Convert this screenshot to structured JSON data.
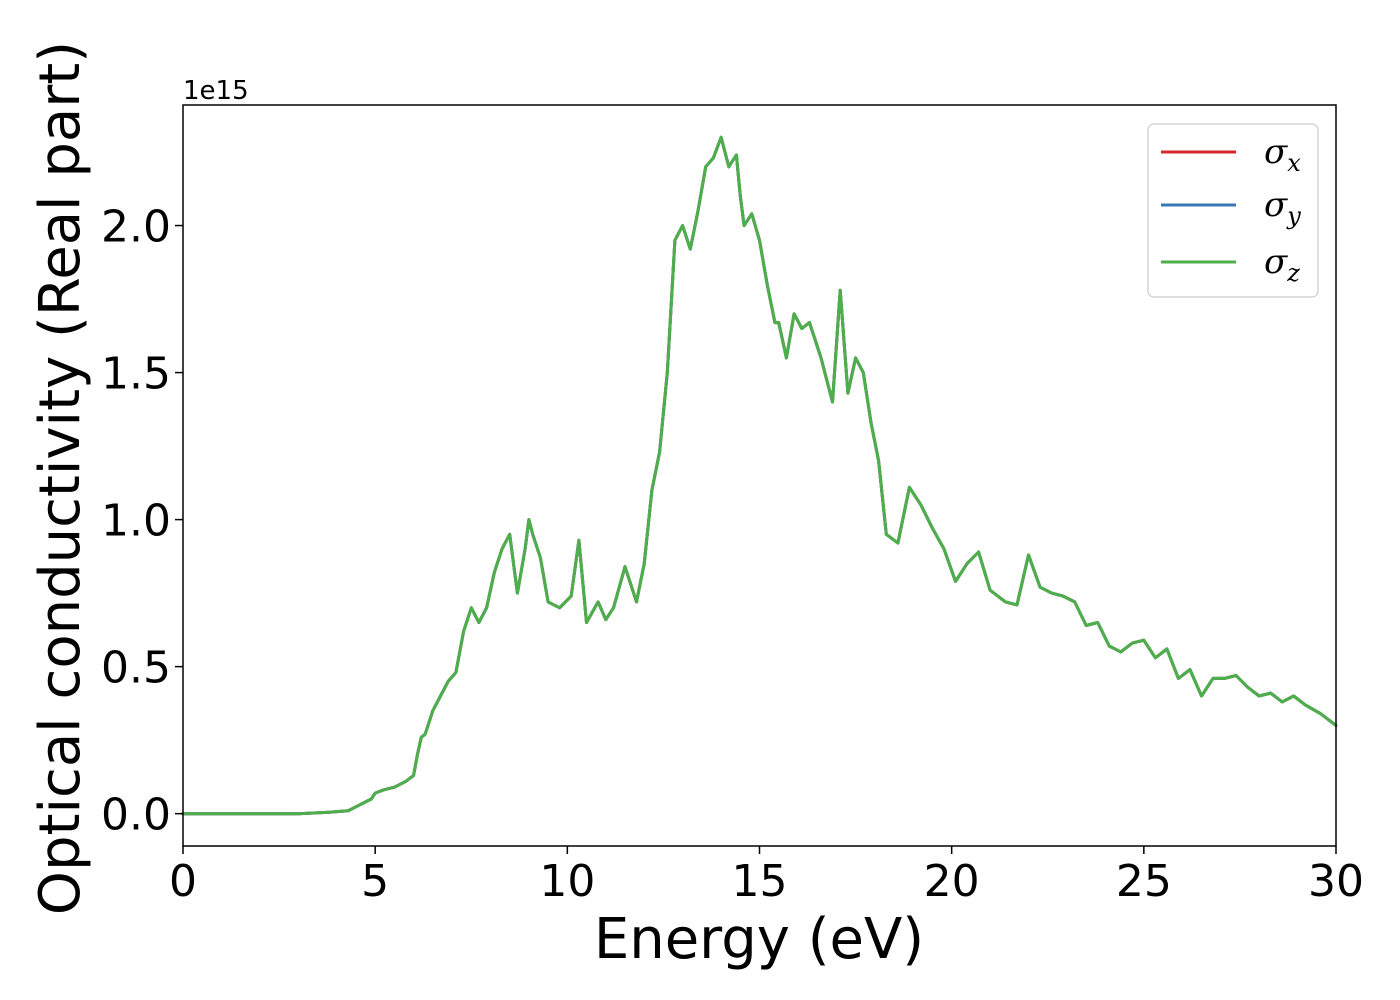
{
  "chart_data": {
    "type": "line",
    "title": "",
    "xlabel": "Energy (eV)",
    "ylabel": "Optical conductivity (Real part)",
    "y_offset_text": "1e15",
    "y_multiplier": 1000000000000000.0,
    "xlim": [
      0,
      30
    ],
    "ylim": [
      -0.11,
      2.41
    ],
    "xticks": [
      0,
      5,
      10,
      15,
      20,
      25,
      30
    ],
    "xtick_labels": [
      "0",
      "5",
      "10",
      "15",
      "20",
      "25",
      "30"
    ],
    "yticks": [
      0.0,
      0.5,
      1.0,
      1.5,
      2.0
    ],
    "ytick_labels": [
      "0.0",
      "0.5",
      "1.0",
      "1.5",
      "2.0"
    ],
    "grid": false,
    "legend_position": "top-right",
    "series": [
      {
        "name": "σx",
        "label_base": "σ",
        "label_sub": "x",
        "color": "#d62728",
        "x": [
          0,
          1,
          2,
          3,
          3.8,
          4.3,
          4.6,
          4.9,
          5.0,
          5.2,
          5.5,
          5.8,
          6.0,
          6.1,
          6.2,
          6.3,
          6.5,
          6.7,
          6.9,
          7.1,
          7.3,
          7.5,
          7.7,
          7.9,
          8.1,
          8.3,
          8.5,
          8.7,
          8.9,
          9.0,
          9.1,
          9.3,
          9.5,
          9.8,
          10.1,
          10.3,
          10.5,
          10.8,
          11.0,
          11.2,
          11.5,
          11.8,
          12.0,
          12.2,
          12.4,
          12.6,
          12.8,
          13.0,
          13.2,
          13.4,
          13.6,
          13.8,
          14.0,
          14.2,
          14.4,
          14.5,
          14.6,
          14.8,
          15.0,
          15.2,
          15.4,
          15.5,
          15.7,
          15.9,
          16.1,
          16.3,
          16.6,
          16.9,
          17.1,
          17.3,
          17.5,
          17.7,
          17.9,
          18.1,
          18.3,
          18.6,
          18.9,
          19.2,
          19.5,
          19.8,
          20.1,
          20.4,
          20.7,
          21.0,
          21.4,
          21.7,
          22.0,
          22.3,
          22.6,
          22.9,
          23.2,
          23.5,
          23.8,
          24.1,
          24.4,
          24.7,
          25.0,
          25.3,
          25.6,
          25.9,
          26.2,
          26.5,
          26.8,
          27.1,
          27.4,
          27.7,
          28.0,
          28.3,
          28.6,
          28.9,
          29.2,
          29.6,
          30.0
        ],
        "y": [
          0.0,
          0.0,
          0.0,
          0.0,
          0.005,
          0.01,
          0.03,
          0.05,
          0.07,
          0.08,
          0.09,
          0.11,
          0.13,
          0.2,
          0.26,
          0.27,
          0.35,
          0.4,
          0.45,
          0.48,
          0.62,
          0.7,
          0.65,
          0.7,
          0.82,
          0.9,
          0.95,
          0.75,
          0.9,
          1.0,
          0.95,
          0.87,
          0.72,
          0.7,
          0.74,
          0.93,
          0.65,
          0.72,
          0.66,
          0.7,
          0.84,
          0.72,
          0.85,
          1.1,
          1.23,
          1.5,
          1.95,
          2.0,
          1.92,
          2.05,
          2.2,
          2.23,
          2.3,
          2.2,
          2.24,
          2.1,
          2.0,
          2.04,
          1.95,
          1.8,
          1.67,
          1.67,
          1.55,
          1.7,
          1.65,
          1.67,
          1.55,
          1.4,
          1.78,
          1.43,
          1.55,
          1.5,
          1.33,
          1.2,
          0.95,
          0.92,
          1.11,
          1.05,
          0.97,
          0.9,
          0.79,
          0.85,
          0.89,
          0.76,
          0.72,
          0.71,
          0.88,
          0.77,
          0.75,
          0.74,
          0.72,
          0.64,
          0.65,
          0.57,
          0.55,
          0.58,
          0.59,
          0.53,
          0.56,
          0.46,
          0.49,
          0.4,
          0.46,
          0.46,
          0.47,
          0.43,
          0.4,
          0.41,
          0.38,
          0.4,
          0.37,
          0.34,
          0.3
        ]
      },
      {
        "name": "σy",
        "label_base": "σ",
        "label_sub": "y",
        "color": "#3a78b5",
        "x": [
          0,
          1,
          2,
          3,
          3.8,
          4.3,
          4.6,
          4.9,
          5.0,
          5.2,
          5.5,
          5.8,
          6.0,
          6.1,
          6.2,
          6.3,
          6.5,
          6.7,
          6.9,
          7.1,
          7.3,
          7.5,
          7.7,
          7.9,
          8.1,
          8.3,
          8.5,
          8.7,
          8.9,
          9.0,
          9.1,
          9.3,
          9.5,
          9.8,
          10.1,
          10.3,
          10.5,
          10.8,
          11.0,
          11.2,
          11.5,
          11.8,
          12.0,
          12.2,
          12.4,
          12.6,
          12.8,
          13.0,
          13.2,
          13.4,
          13.6,
          13.8,
          14.0,
          14.2,
          14.4,
          14.5,
          14.6,
          14.8,
          15.0,
          15.2,
          15.4,
          15.5,
          15.7,
          15.9,
          16.1,
          16.3,
          16.6,
          16.9,
          17.1,
          17.3,
          17.5,
          17.7,
          17.9,
          18.1,
          18.3,
          18.6,
          18.9,
          19.2,
          19.5,
          19.8,
          20.1,
          20.4,
          20.7,
          21.0,
          21.4,
          21.7,
          22.0,
          22.3,
          22.6,
          22.9,
          23.2,
          23.5,
          23.8,
          24.1,
          24.4,
          24.7,
          25.0,
          25.3,
          25.6,
          25.9,
          26.2,
          26.5,
          26.8,
          27.1,
          27.4,
          27.7,
          28.0,
          28.3,
          28.6,
          28.9,
          29.2,
          29.6,
          30.0
        ],
        "y": [
          0.0,
          0.0,
          0.0,
          0.0,
          0.005,
          0.01,
          0.03,
          0.05,
          0.07,
          0.08,
          0.09,
          0.11,
          0.13,
          0.2,
          0.26,
          0.27,
          0.35,
          0.4,
          0.45,
          0.48,
          0.62,
          0.7,
          0.65,
          0.7,
          0.82,
          0.9,
          0.95,
          0.75,
          0.9,
          1.0,
          0.95,
          0.87,
          0.72,
          0.7,
          0.74,
          0.93,
          0.65,
          0.72,
          0.66,
          0.7,
          0.84,
          0.72,
          0.85,
          1.1,
          1.23,
          1.5,
          1.95,
          2.0,
          1.92,
          2.05,
          2.2,
          2.23,
          2.3,
          2.2,
          2.24,
          2.1,
          2.0,
          2.04,
          1.95,
          1.8,
          1.67,
          1.67,
          1.55,
          1.7,
          1.65,
          1.67,
          1.55,
          1.4,
          1.78,
          1.43,
          1.55,
          1.5,
          1.33,
          1.2,
          0.95,
          0.92,
          1.11,
          1.05,
          0.97,
          0.9,
          0.79,
          0.85,
          0.89,
          0.76,
          0.72,
          0.71,
          0.88,
          0.77,
          0.75,
          0.74,
          0.72,
          0.64,
          0.65,
          0.57,
          0.55,
          0.58,
          0.59,
          0.53,
          0.56,
          0.46,
          0.49,
          0.4,
          0.46,
          0.46,
          0.47,
          0.43,
          0.4,
          0.41,
          0.38,
          0.4,
          0.37,
          0.34,
          0.3
        ]
      },
      {
        "name": "σz",
        "label_base": "σ",
        "label_sub": "z",
        "color": "#4daf4a",
        "x": [
          0,
          1,
          2,
          3,
          3.8,
          4.3,
          4.6,
          4.9,
          5.0,
          5.2,
          5.5,
          5.8,
          6.0,
          6.1,
          6.2,
          6.3,
          6.5,
          6.7,
          6.9,
          7.1,
          7.3,
          7.5,
          7.7,
          7.9,
          8.1,
          8.3,
          8.5,
          8.7,
          8.9,
          9.0,
          9.1,
          9.3,
          9.5,
          9.8,
          10.1,
          10.3,
          10.5,
          10.8,
          11.0,
          11.2,
          11.5,
          11.8,
          12.0,
          12.2,
          12.4,
          12.6,
          12.8,
          13.0,
          13.2,
          13.4,
          13.6,
          13.8,
          14.0,
          14.2,
          14.4,
          14.5,
          14.6,
          14.8,
          15.0,
          15.2,
          15.4,
          15.5,
          15.7,
          15.9,
          16.1,
          16.3,
          16.6,
          16.9,
          17.1,
          17.3,
          17.5,
          17.7,
          17.9,
          18.1,
          18.3,
          18.6,
          18.9,
          19.2,
          19.5,
          19.8,
          20.1,
          20.4,
          20.7,
          21.0,
          21.4,
          21.7,
          22.0,
          22.3,
          22.6,
          22.9,
          23.2,
          23.5,
          23.8,
          24.1,
          24.4,
          24.7,
          25.0,
          25.3,
          25.6,
          25.9,
          26.2,
          26.5,
          26.8,
          27.1,
          27.4,
          27.7,
          28.0,
          28.3,
          28.6,
          28.9,
          29.2,
          29.6,
          30.0
        ],
        "y": [
          0.0,
          0.0,
          0.0,
          0.0,
          0.005,
          0.01,
          0.03,
          0.05,
          0.07,
          0.08,
          0.09,
          0.11,
          0.13,
          0.2,
          0.26,
          0.27,
          0.35,
          0.4,
          0.45,
          0.48,
          0.62,
          0.7,
          0.65,
          0.7,
          0.82,
          0.9,
          0.95,
          0.75,
          0.9,
          1.0,
          0.95,
          0.87,
          0.72,
          0.7,
          0.74,
          0.93,
          0.65,
          0.72,
          0.66,
          0.7,
          0.84,
          0.72,
          0.85,
          1.1,
          1.23,
          1.5,
          1.95,
          2.0,
          1.92,
          2.05,
          2.2,
          2.23,
          2.3,
          2.2,
          2.24,
          2.1,
          2.0,
          2.04,
          1.95,
          1.8,
          1.67,
          1.67,
          1.55,
          1.7,
          1.65,
          1.67,
          1.55,
          1.4,
          1.78,
          1.43,
          1.55,
          1.5,
          1.33,
          1.2,
          0.95,
          0.92,
          1.11,
          1.05,
          0.97,
          0.9,
          0.79,
          0.85,
          0.89,
          0.76,
          0.72,
          0.71,
          0.88,
          0.77,
          0.75,
          0.74,
          0.72,
          0.64,
          0.65,
          0.57,
          0.55,
          0.58,
          0.59,
          0.53,
          0.56,
          0.46,
          0.49,
          0.4,
          0.46,
          0.46,
          0.47,
          0.43,
          0.4,
          0.41,
          0.38,
          0.4,
          0.37,
          0.34,
          0.3
        ]
      }
    ]
  },
  "colors": {
    "background": "#ffffff",
    "axes": "#000000",
    "legend_border": "#cccccc"
  }
}
